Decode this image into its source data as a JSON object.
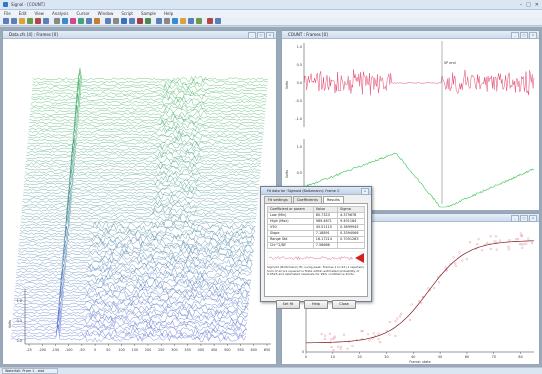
{
  "app": {
    "title": "Signal - [COUNT]",
    "window_controls": [
      "–",
      "□",
      "✕"
    ]
  },
  "menubar": [
    "File",
    "Edit",
    "View",
    "Analysis",
    "Cursor",
    "Window",
    "Script",
    "Sample",
    "Help"
  ],
  "toolbar_tool_count": 26,
  "windows": {
    "waterfall": {
      "title": "Data.cfs [4] : Frames [0]",
      "x_ticks": [
        "-25",
        "-200",
        "-150",
        "-100",
        "-50",
        "0",
        "50",
        "100",
        "150",
        "200",
        "250",
        "300",
        "350",
        "400",
        "450",
        "500",
        "550",
        "600",
        "650"
      ],
      "y_ticks": [
        "1.0",
        "0.5",
        "0.0"
      ],
      "ylabel": "Volts"
    },
    "trace": {
      "title": "COUNT : Frames [0]",
      "cursor_label": "SP end",
      "y1_ticks": [
        "1.0",
        "0.5",
        "0.0",
        "-0.5",
        "-1.0"
      ],
      "y2_ticks": [
        "1.0",
        "0.5",
        "0.0"
      ],
      "x_ticks": [
        "0",
        "50",
        "100",
        "150",
        "200",
        "250",
        "300",
        "350",
        "400",
        "450",
        "500",
        "550",
        "600"
      ],
      "y1_label": "Volts",
      "y2_label": "Volts"
    },
    "fit": {
      "title": "Fit : Frames [0]",
      "y_ticks": [
        "1000",
        "500",
        "0"
      ],
      "x_ticks": [
        "0",
        "10",
        "20",
        "30",
        "40",
        "50",
        "60",
        "70",
        "80"
      ],
      "xlabel": "Frame: state"
    }
  },
  "dialog": {
    "title": "Fit data for 'Sigmoid (Boltzmann): Frame 1'",
    "tabs": [
      "Fit settings",
      "Coefficients",
      "Results"
    ],
    "active_tab": "Results",
    "table": {
      "headers": [
        "Coefficient or param",
        "Value",
        "Sigma"
      ],
      "rows": [
        [
          "Low (Min)",
          "80.7323",
          "4.375678"
        ],
        [
          "High (Max)",
          "989.4671",
          "9.491184"
        ],
        [
          "V50",
          "45.51115",
          "0.3699945"
        ],
        [
          "Slope",
          "7.18891",
          "0.3394066"
        ],
        [
          "Range Std",
          "16.17214",
          "0.7051283"
        ],
        [
          "Chi^2/DF",
          "7.56686",
          ""
        ]
      ]
    },
    "description": "Sigmoid (Boltzmann) fit, using peak. Frames 1 to 93 (1 rejected). Sum of errors squared is finite within estimated probability of 0.0525 and estimated residuals for 99% confidence limits.",
    "buttons": [
      "Set fit",
      "Help",
      "Close"
    ]
  },
  "taskbar": {
    "label": "Waterfall: Prom 1 - stat"
  },
  "colors": {
    "trace_pink": "#e0406a",
    "trace_green": "#3cc45a",
    "fit_curve": "#7a1a1a",
    "waterfall_top": "#2fae4a",
    "waterfall_bottom": "#4a5fd0"
  }
}
